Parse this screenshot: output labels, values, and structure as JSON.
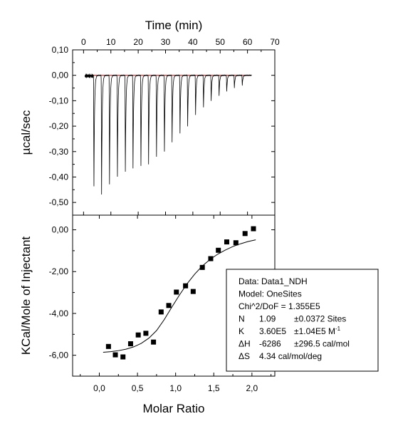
{
  "chart_data": [
    {
      "type": "line",
      "panel": "top",
      "xlabel": "Time (min)",
      "ylabel": "µcal/sec",
      "xlim": [
        -4,
        70
      ],
      "ylim": [
        -0.55,
        0.1
      ],
      "xticks": [
        0,
        10,
        20,
        30,
        40,
        50,
        60,
        70
      ],
      "xtick_labels": [
        "0",
        "10",
        "20",
        "30",
        "40",
        "50",
        "60",
        "70"
      ],
      "yticks": [
        0.1,
        0.0,
        -0.1,
        -0.2,
        -0.3,
        -0.4,
        -0.5
      ],
      "ytick_labels": [
        "0,10",
        "0,00",
        "-0,10",
        "-0,20",
        "-0,30",
        "-0,40",
        "-0,50"
      ],
      "baseline_color": "#cc0000",
      "trace_color": "#000000",
      "injection_times": [
        3.8,
        6.6,
        9.5,
        12.4,
        15.3,
        18.1,
        21.0,
        23.8,
        26.7,
        29.6,
        32.4,
        35.3,
        38.1,
        41.0,
        43.9,
        46.7,
        49.6,
        52.4,
        55.2,
        58.1
      ],
      "peak_values": [
        -0.43,
        -0.47,
        -0.43,
        -0.4,
        -0.38,
        -0.365,
        -0.355,
        -0.35,
        -0.32,
        -0.3,
        -0.265,
        -0.23,
        -0.2,
        -0.155,
        -0.125,
        -0.1,
        -0.08,
        -0.065,
        -0.05,
        -0.04
      ],
      "trace_start": 0.5,
      "trace_end": 61.5
    },
    {
      "type": "scatter",
      "panel": "bottom",
      "xlabel": "Molar Ratio",
      "ylabel": "KCal/Mole of Injectant",
      "xlim": [
        -0.35,
        2.3
      ],
      "ylim": [
        -7.0,
        0.7
      ],
      "xticks": [
        0.0,
        0.5,
        1.0,
        1.5,
        2.0
      ],
      "xtick_labels": [
        "0,0",
        "0,5",
        "1,0",
        "1,5",
        "2,0"
      ],
      "yticks": [
        0.0,
        -2.0,
        -4.0,
        -6.0
      ],
      "ytick_labels": [
        "0,00",
        "-2,00",
        "-4,00",
        "-6,00"
      ],
      "x": [
        0.12,
        0.21,
        0.31,
        0.41,
        0.51,
        0.61,
        0.71,
        0.81,
        0.91,
        1.01,
        1.13,
        1.23,
        1.35,
        1.46,
        1.56,
        1.67,
        1.79,
        1.91,
        2.02
      ],
      "y": [
        -5.58,
        -5.98,
        -6.08,
        -5.45,
        -5.03,
        -4.95,
        -5.37,
        -3.93,
        -3.62,
        -2.98,
        -2.68,
        -2.95,
        -1.8,
        -1.38,
        -0.98,
        -0.58,
        -0.62,
        -0.18,
        0.05
      ],
      "fit": {
        "x": [
          0.05,
          0.15,
          0.25,
          0.35,
          0.45,
          0.55,
          0.65,
          0.75,
          0.85,
          0.95,
          1.05,
          1.15,
          1.25,
          1.35,
          1.45,
          1.55,
          1.65,
          1.75,
          1.85,
          1.95,
          2.05
        ],
        "y": [
          -5.86,
          -5.83,
          -5.78,
          -5.71,
          -5.6,
          -5.43,
          -5.18,
          -4.82,
          -4.3,
          -3.7,
          -3.12,
          -2.58,
          -2.12,
          -1.73,
          -1.42,
          -1.17,
          -0.97,
          -0.8,
          -0.67,
          -0.56,
          -0.48
        ]
      }
    }
  ],
  "fit_box": {
    "lines": [
      {
        "label": "Data: Data1_NDH"
      },
      {
        "label": "Model: OneSites"
      },
      {
        "label": "Chi^2/DoF = 1.355E5"
      },
      {
        "label": "N",
        "value": "1.09",
        "error": "±0.0372 Sites"
      },
      {
        "label": "K",
        "value": "3.60E5",
        "error": "±1.04E5 M",
        "sup": "-1"
      },
      {
        "label": "ΔH",
        "value": "-6286",
        "error": "±296.5 cal/mol"
      },
      {
        "label": "ΔS",
        "value": "4.34 cal/mol/deg"
      }
    ]
  }
}
